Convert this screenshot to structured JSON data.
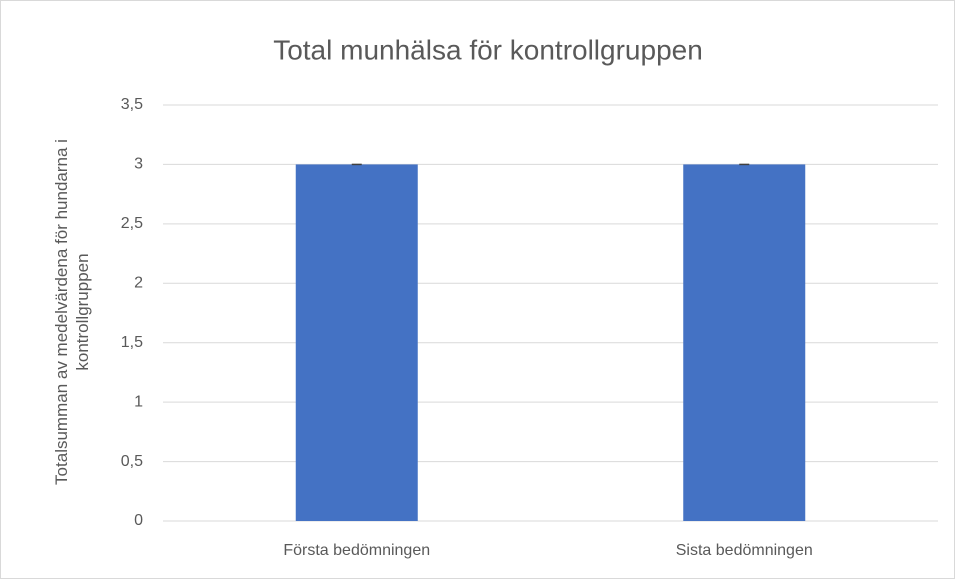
{
  "chart_data": {
    "type": "bar",
    "title": "Total munhälsa för kontrollgruppen",
    "y_label": "Totalsumman av medelvärdena för hundarna i kontrollgruppen",
    "categories": [
      "Första bedömningen",
      "Sista bedömningen"
    ],
    "values": [
      3,
      3
    ],
    "errors": [
      0,
      0
    ],
    "color": "#4472c4",
    "ylim": [
      0,
      3.5
    ],
    "yticks": [
      0,
      {
        "value": 0.5,
        "label": "0,5"
      },
      1,
      {
        "value": 1.5,
        "label": "1,5"
      },
      2,
      {
        "value": 2.5,
        "label": "2,5"
      },
      3,
      {
        "value": 3.5,
        "label": "3,5"
      }
    ],
    "grid": true
  }
}
